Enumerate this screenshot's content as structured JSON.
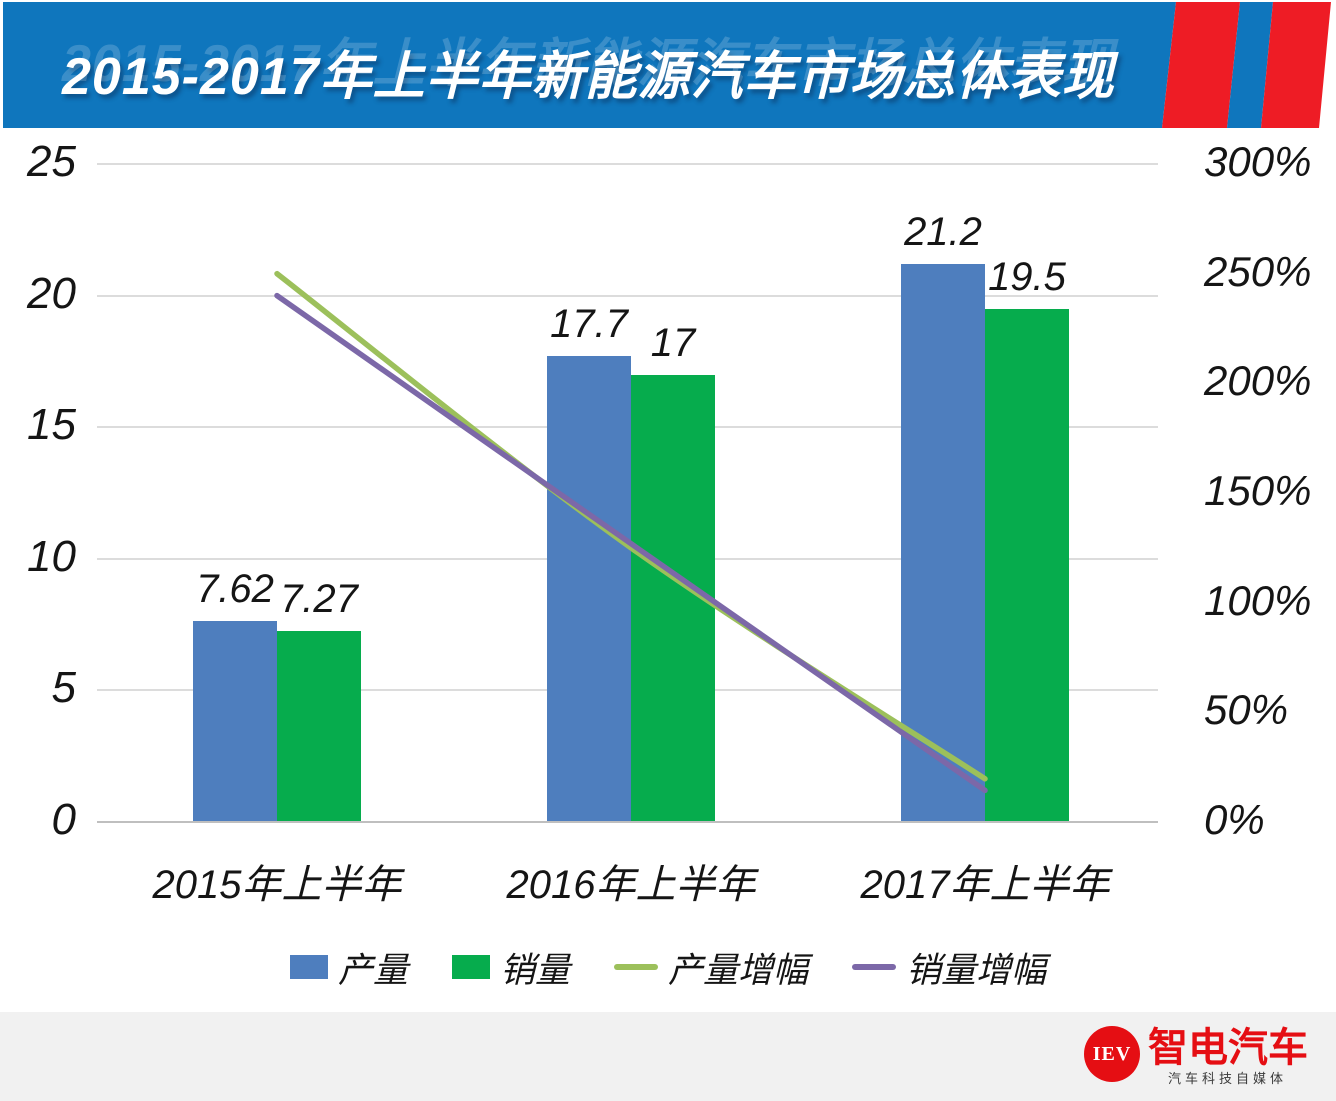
{
  "banner": {
    "title": "2015-2017年上半年新能源汽车市场总体表现",
    "bg_color": "#0F76BD",
    "stripe_red": "#EE1C25",
    "stripe_blue": "#0F76BD"
  },
  "chart_data": {
    "type": "bar",
    "subtype": "combo bar + line, dual axis",
    "categories": [
      "2015年上半年",
      "2016年上半年",
      "2017年上半年"
    ],
    "series": [
      {
        "name": "产量",
        "type": "bar",
        "axis": "left",
        "color": "#4E7EBE",
        "values": [
          7.62,
          17.7,
          21.2
        ],
        "labels": [
          "7.62",
          "17.7",
          "21.2"
        ]
      },
      {
        "name": "销量",
        "type": "bar",
        "axis": "left",
        "color": "#06AC4D",
        "values": [
          7.27,
          17,
          19.5
        ],
        "labels": [
          "7.27",
          "17",
          "19.5"
        ]
      },
      {
        "name": "产量增幅",
        "type": "line",
        "axis": "right",
        "color": "#9CC05B",
        "values": [
          250,
          125,
          19.7
        ]
      },
      {
        "name": "销量增幅",
        "type": "line",
        "axis": "right",
        "color": "#7C68A8",
        "values": [
          240,
          126.9,
          14.4
        ]
      }
    ],
    "left_axis": {
      "ticks": [
        "25",
        "20",
        "15",
        "10",
        "5",
        "0"
      ],
      "min": 0,
      "max": 25
    },
    "right_axis": {
      "ticks": [
        "300%",
        "250%",
        "200%",
        "150%",
        "100%",
        "50%",
        "0%"
      ],
      "min": 0,
      "max": 300
    },
    "grid": true,
    "legend_position": "bottom",
    "gridline_color": "#DCDCDC",
    "axisline_color": "#BFBFBF"
  },
  "footer": {
    "logo_text": "IEV",
    "brand": "智电汽车",
    "tagline": "汽车科技自媒体",
    "logo_color": "#E50E13"
  }
}
